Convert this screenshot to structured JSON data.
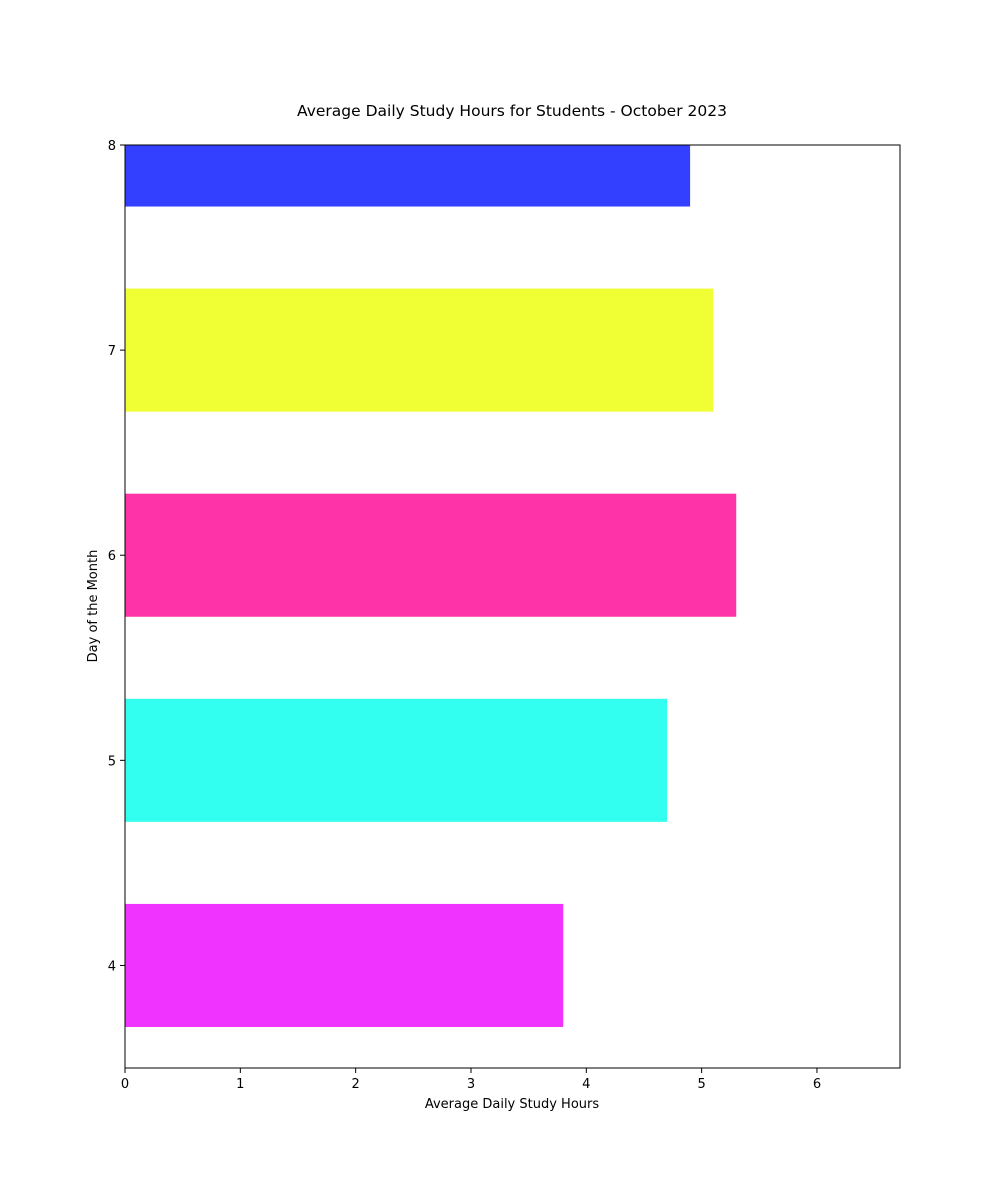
{
  "chart_data": {
    "type": "bar",
    "orientation": "horizontal",
    "title": "Average Daily Study Hours for Students - October 2023",
    "xlabel": "Average Daily Study Hours",
    "ylabel": "Day of the Month",
    "categories": [
      "4",
      "5",
      "6",
      "7",
      "8"
    ],
    "values": [
      3.8,
      4.7,
      5.3,
      5.1,
      4.9
    ],
    "colors": [
      "#f033ff",
      "#33fff0",
      "#ff33a8",
      "#f0ff33",
      "#3340ff"
    ],
    "xlim": [
      0,
      6.72
    ],
    "ylim": [
      3.5,
      8.0
    ],
    "x_ticks": [
      "0",
      "1",
      "2",
      "3",
      "4",
      "5",
      "6"
    ],
    "y_ticks": [
      "4",
      "5",
      "6",
      "7",
      "8"
    ],
    "bar_height": 0.6,
    "grid": false,
    "legend": "none"
  }
}
